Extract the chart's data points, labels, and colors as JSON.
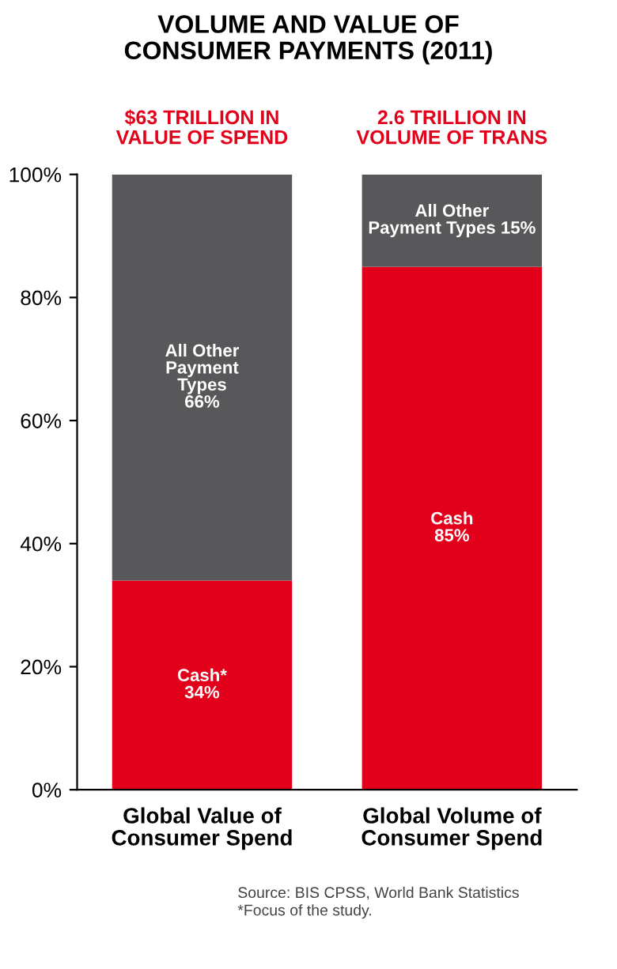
{
  "chart_data": {
    "type": "bar",
    "title": "VOLUME AND VALUE OF\nCONSUMER PAYMENTS (2011)",
    "stacked": true,
    "categories": [
      "Global Value of\nConsumer Spend",
      "Global Volume of\nConsumer Spend"
    ],
    "series": [
      {
        "color": "#e2001a",
        "values": [
          34,
          85
        ],
        "value_labels": [
          "Cash*\n34%",
          "Cash\n85%"
        ]
      },
      {
        "color": "#58585a",
        "values": [
          66,
          15
        ],
        "value_labels": [
          "All Other\nPayment\nTypes\n66%",
          "All Other\nPayment Types 15%"
        ]
      }
    ],
    "ylim": [
      0,
      100
    ],
    "yticks": [
      {
        "value": 0,
        "label": "0%"
      },
      {
        "value": 20,
        "label": "20%"
      },
      {
        "value": 40,
        "label": "40%"
      },
      {
        "value": 60,
        "label": "60%"
      },
      {
        "value": 80,
        "label": "80%"
      },
      {
        "value": 100,
        "label": "100%"
      }
    ],
    "grid": false,
    "legend": false,
    "annotations": [
      "$63 TRILLION IN\nVALUE OF SPEND",
      "2.6 TRILLION IN\nVOLUME OF TRANS",
      "Source: BIS CPSS, World Bank Statistics\n*Focus of the study."
    ]
  }
}
